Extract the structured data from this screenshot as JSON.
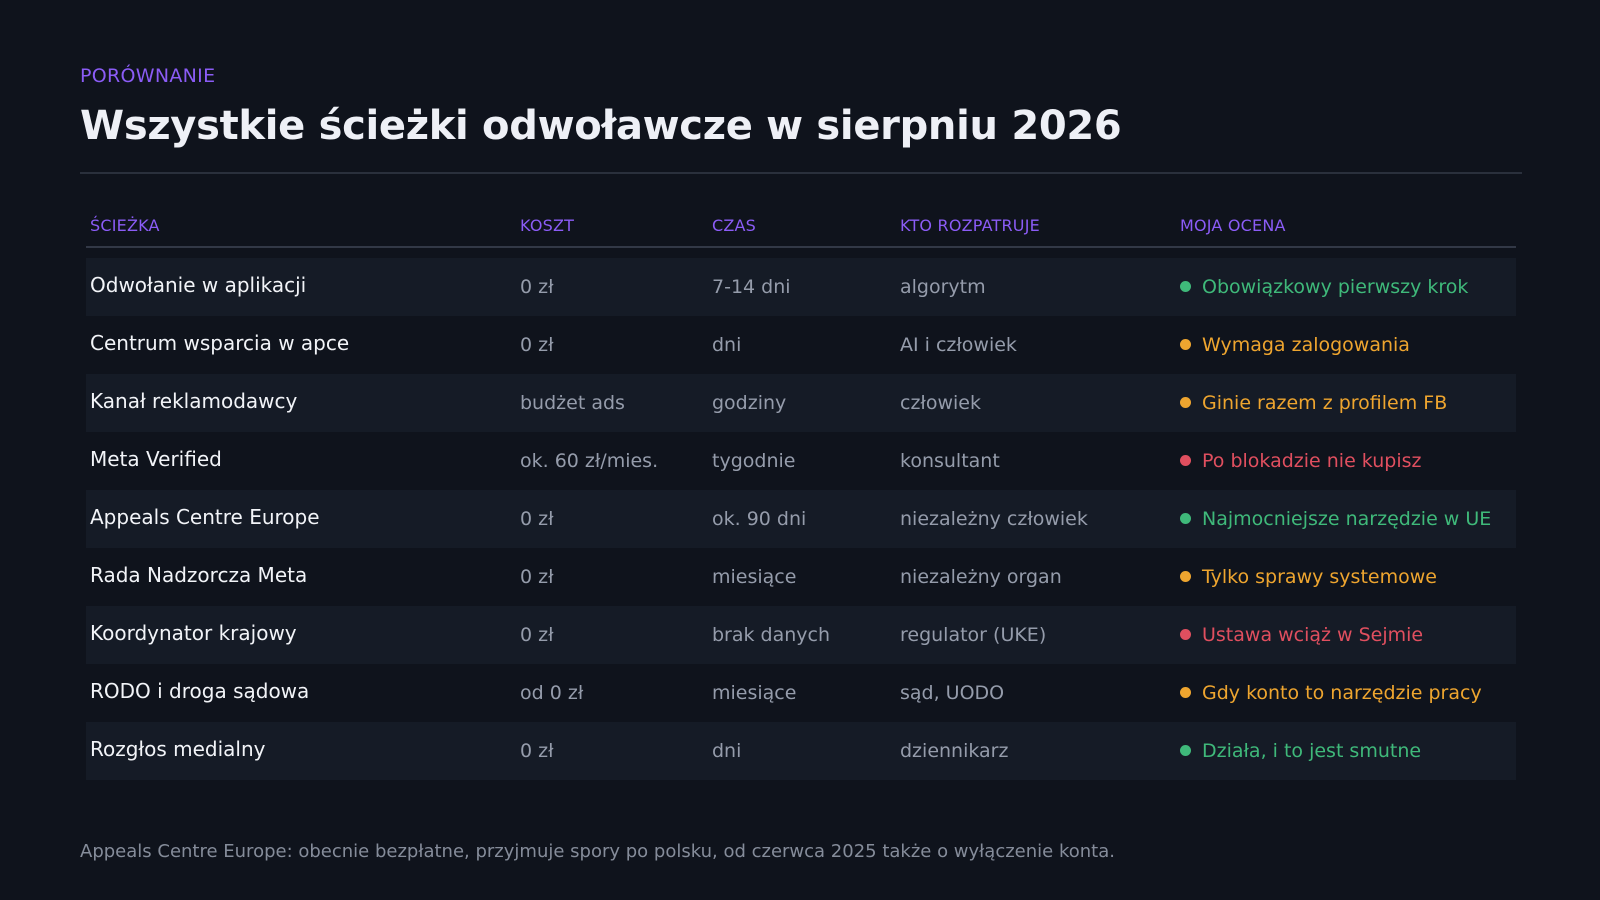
{
  "header": {
    "eyebrow": "PORÓWNANIE",
    "title": "Wszystkie ścieżki odwoławcze w sierpniu 2026"
  },
  "table": {
    "headers": {
      "path": "ŚCIEŻKA",
      "cost": "KOSZT",
      "time": "CZAS",
      "who": "KTO ROZPATRUJE",
      "rating": "MOJA OCENA"
    },
    "status_colors": {
      "good": "#3fb97a",
      "warn": "#eea52f",
      "bad": "#e04f5f"
    },
    "rows": [
      {
        "path": "Odwołanie w aplikacji",
        "cost": "0 zł",
        "time": "7-14 dni",
        "who": "algorytm",
        "rating": "Obowiązkowy pierwszy krok",
        "status": "good"
      },
      {
        "path": "Centrum wsparcia w apce",
        "cost": "0 zł",
        "time": "dni",
        "who": "AI i człowiek",
        "rating": "Wymaga zalogowania",
        "status": "warn"
      },
      {
        "path": "Kanał reklamodawcy",
        "cost": "budżet ads",
        "time": "godziny",
        "who": "człowiek",
        "rating": "Ginie razem z profilem FB",
        "status": "warn"
      },
      {
        "path": "Meta Verified",
        "cost": "ok. 60 zł/mies.",
        "time": "tygodnie",
        "who": "konsultant",
        "rating": "Po blokadzie nie kupisz",
        "status": "bad"
      },
      {
        "path": "Appeals Centre Europe",
        "cost": "0 zł",
        "time": "ok. 90 dni",
        "who": "niezależny człowiek",
        "rating": "Najmocniejsze narzędzie w UE",
        "status": "good"
      },
      {
        "path": "Rada Nadzorcza Meta",
        "cost": "0 zł",
        "time": "miesiące",
        "who": "niezależny organ",
        "rating": "Tylko sprawy systemowe",
        "status": "warn"
      },
      {
        "path": "Koordynator krajowy",
        "cost": "0 zł",
        "time": "brak danych",
        "who": "regulator (UKE)",
        "rating": "Ustawa wciąż w Sejmie",
        "status": "bad"
      },
      {
        "path": "RODO i droga sądowa",
        "cost": "od 0 zł",
        "time": "miesiące",
        "who": "sąd, UODO",
        "rating": "Gdy konto to narzędzie pracy",
        "status": "warn"
      },
      {
        "path": "Rozgłos medialny",
        "cost": "0 zł",
        "time": "dni",
        "who": "dziennikarz",
        "rating": "Działa, i to jest smutne",
        "status": "good"
      }
    ]
  },
  "footnote": "Appeals Centre Europe: obecnie bezpłatne, przyjmuje spory po polsku, od czerwca 2025 także o wyłączenie konta."
}
